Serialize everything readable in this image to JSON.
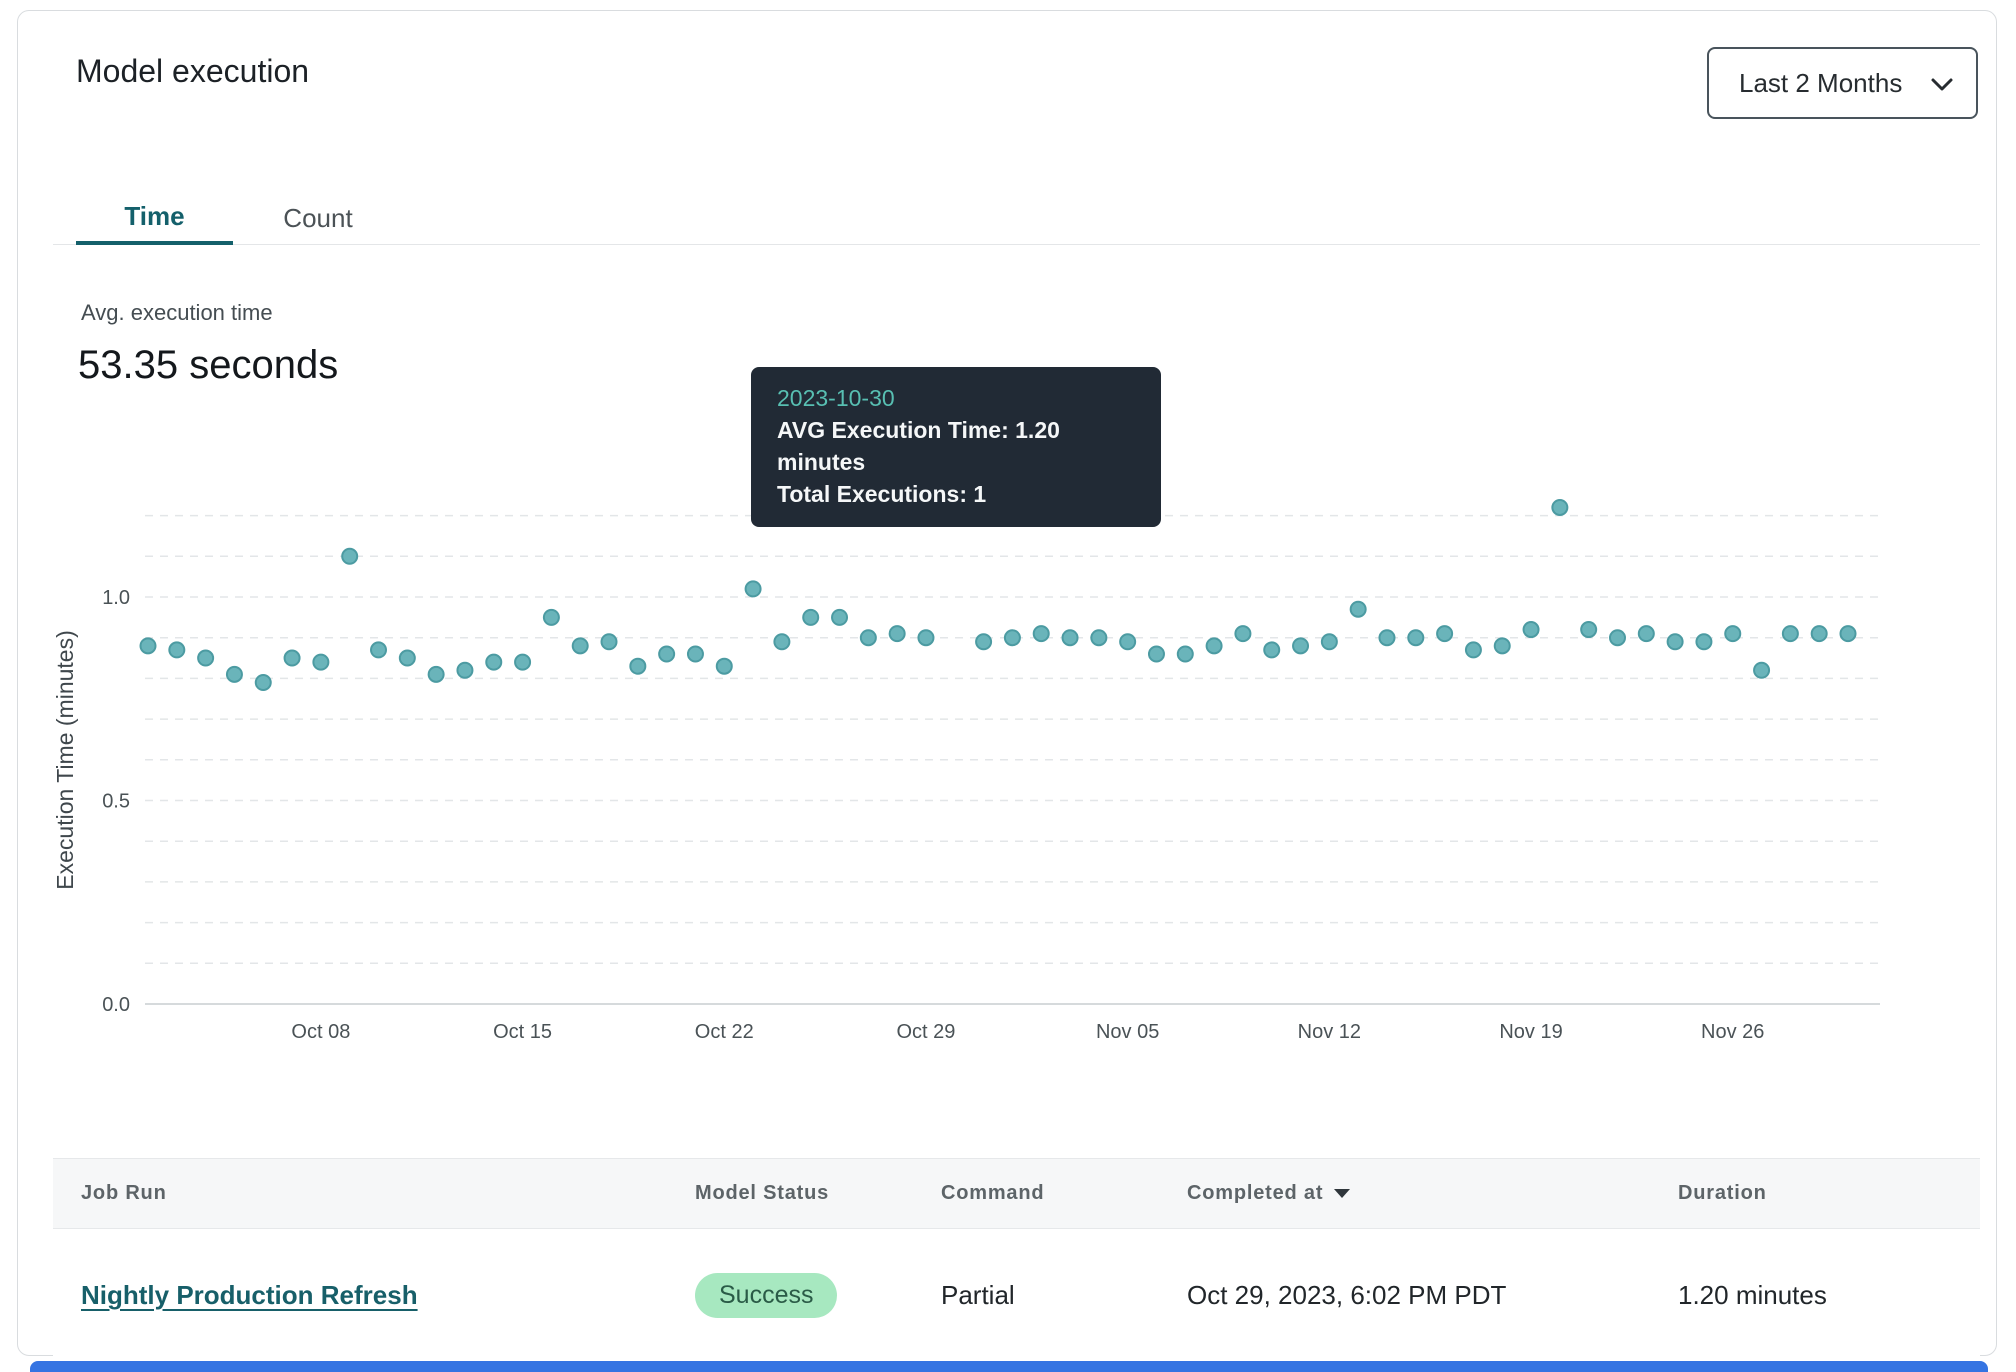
{
  "header": {
    "title": "Model execution",
    "range_selector": "Last 2 Months"
  },
  "tabs": {
    "time": "Time",
    "count": "Count"
  },
  "summary": {
    "label": "Avg. execution time",
    "value": "53.35 seconds"
  },
  "tooltip": {
    "date": "2023-10-30",
    "avg_line": "AVG Execution Time: 1.20 minutes",
    "total_line": "Total Executions: 1"
  },
  "chart_data": {
    "type": "scatter",
    "ylabel": "Execution Time (minutes)",
    "ylim": [
      0,
      1.25
    ],
    "yticks": [
      0.0,
      0.5,
      1.0
    ],
    "grid_interval": 0.1,
    "grid_max": 1.2,
    "x_start": "2023-10-02",
    "x_ticks": [
      {
        "label": "Oct 08",
        "date": "2023-10-08"
      },
      {
        "label": "Oct 15",
        "date": "2023-10-15"
      },
      {
        "label": "Oct 22",
        "date": "2023-10-22"
      },
      {
        "label": "Oct 29",
        "date": "2023-10-29"
      },
      {
        "label": "Nov 05",
        "date": "2023-11-05"
      },
      {
        "label": "Nov 12",
        "date": "2023-11-12"
      },
      {
        "label": "Nov 19",
        "date": "2023-11-19"
      },
      {
        "label": "Nov 26",
        "date": "2023-11-26"
      }
    ],
    "highlighted_date": "2023-10-30",
    "colors": {
      "dot": "#6ab4ba",
      "dot_stroke": "#4c9ba2",
      "highlight": "#414f5a",
      "grid": "#e3e6e8",
      "axis": "#c8cdd1",
      "tick_text": "#4a5256",
      "label_text": "#3f474c"
    },
    "points": [
      {
        "date": "2023-10-02",
        "value": 0.88
      },
      {
        "date": "2023-10-03",
        "value": 0.87
      },
      {
        "date": "2023-10-04",
        "value": 0.85
      },
      {
        "date": "2023-10-05",
        "value": 0.81
      },
      {
        "date": "2023-10-06",
        "value": 0.79
      },
      {
        "date": "2023-10-07",
        "value": 0.85
      },
      {
        "date": "2023-10-08",
        "value": 0.84
      },
      {
        "date": "2023-10-09",
        "value": 1.1
      },
      {
        "date": "2023-10-10",
        "value": 0.87
      },
      {
        "date": "2023-10-11",
        "value": 0.85
      },
      {
        "date": "2023-10-12",
        "value": 0.81
      },
      {
        "date": "2023-10-13",
        "value": 0.82
      },
      {
        "date": "2023-10-14",
        "value": 0.84
      },
      {
        "date": "2023-10-15",
        "value": 0.84
      },
      {
        "date": "2023-10-16",
        "value": 0.95
      },
      {
        "date": "2023-10-17",
        "value": 0.88
      },
      {
        "date": "2023-10-18",
        "value": 0.89
      },
      {
        "date": "2023-10-19",
        "value": 0.83
      },
      {
        "date": "2023-10-20",
        "value": 0.86
      },
      {
        "date": "2023-10-21",
        "value": 0.86
      },
      {
        "date": "2023-10-22",
        "value": 0.83
      },
      {
        "date": "2023-10-23",
        "value": 1.02
      },
      {
        "date": "2023-10-24",
        "value": 0.89
      },
      {
        "date": "2023-10-25",
        "value": 0.95
      },
      {
        "date": "2023-10-26",
        "value": 0.95
      },
      {
        "date": "2023-10-27",
        "value": 0.9
      },
      {
        "date": "2023-10-28",
        "value": 0.91
      },
      {
        "date": "2023-10-29",
        "value": 0.9
      },
      {
        "date": "2023-10-30",
        "value": 1.2
      },
      {
        "date": "2023-10-31",
        "value": 0.89
      },
      {
        "date": "2023-11-01",
        "value": 0.9
      },
      {
        "date": "2023-11-02",
        "value": 0.91
      },
      {
        "date": "2023-11-03",
        "value": 0.9
      },
      {
        "date": "2023-11-04",
        "value": 0.9
      },
      {
        "date": "2023-11-05",
        "value": 0.89
      },
      {
        "date": "2023-11-06",
        "value": 0.86
      },
      {
        "date": "2023-11-07",
        "value": 0.86
      },
      {
        "date": "2023-11-08",
        "value": 0.88
      },
      {
        "date": "2023-11-09",
        "value": 0.91
      },
      {
        "date": "2023-11-10",
        "value": 0.87
      },
      {
        "date": "2023-11-11",
        "value": 0.88
      },
      {
        "date": "2023-11-12",
        "value": 0.89
      },
      {
        "date": "2023-11-13",
        "value": 0.97
      },
      {
        "date": "2023-11-14",
        "value": 0.9
      },
      {
        "date": "2023-11-15",
        "value": 0.9
      },
      {
        "date": "2023-11-16",
        "value": 0.91
      },
      {
        "date": "2023-11-17",
        "value": 0.87
      },
      {
        "date": "2023-11-18",
        "value": 0.88
      },
      {
        "date": "2023-11-19",
        "value": 0.92
      },
      {
        "date": "2023-11-20",
        "value": 1.22
      },
      {
        "date": "2023-11-21",
        "value": 0.92
      },
      {
        "date": "2023-11-22",
        "value": 0.9
      },
      {
        "date": "2023-11-23",
        "value": 0.91
      },
      {
        "date": "2023-11-24",
        "value": 0.89
      },
      {
        "date": "2023-11-25",
        "value": 0.89
      },
      {
        "date": "2023-11-26",
        "value": 0.91
      },
      {
        "date": "2023-11-27",
        "value": 0.82
      },
      {
        "date": "2023-11-28",
        "value": 0.91
      },
      {
        "date": "2023-11-29",
        "value": 0.91
      },
      {
        "date": "2023-11-30",
        "value": 0.91
      }
    ]
  },
  "table": {
    "headers": [
      "Job Run",
      "Model Status",
      "Command",
      "Completed at",
      "Duration"
    ],
    "sort_column": "Completed at",
    "rows": [
      {
        "job_run": "Nightly Production Refresh",
        "model_status": "Success",
        "command": "Partial",
        "completed_at": "Oct 29, 2023, 6:02 PM PDT",
        "duration": "1.20 minutes"
      }
    ]
  }
}
